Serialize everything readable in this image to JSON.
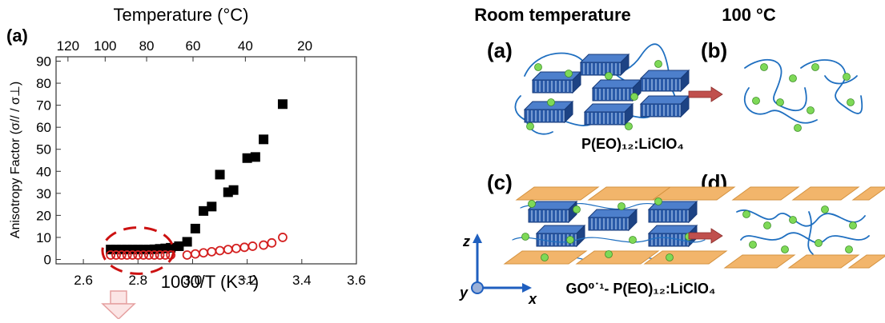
{
  "chart_data": {
    "type": "scatter",
    "panel_label": "(a)",
    "xlabel": "1000/T (K⁻¹)",
    "ylabel": "Anisotropy Factor (σ// / σ⊥)",
    "top_axis_label": "Temperature (°C)",
    "xlim": [
      2.5,
      3.6
    ],
    "ylim": [
      -2,
      92
    ],
    "x_ticks": [
      2.6,
      2.8,
      3.0,
      3.2,
      3.4,
      3.6
    ],
    "y_ticks": [
      0,
      10,
      20,
      30,
      40,
      50,
      60,
      70,
      80,
      90
    ],
    "top_ticks": [
      120,
      100,
      80,
      60,
      40,
      20
    ],
    "series": [
      {
        "marker": "filled-square",
        "color": "#000000",
        "points": [
          [
            2.7,
            4.5
          ],
          [
            2.72,
            4.5
          ],
          [
            2.74,
            4.5
          ],
          [
            2.76,
            4.5
          ],
          [
            2.78,
            4.5
          ],
          [
            2.8,
            4.5
          ],
          [
            2.82,
            4.5
          ],
          [
            2.84,
            4.5
          ],
          [
            2.86,
            4.6
          ],
          [
            2.88,
            4.8
          ],
          [
            2.9,
            5.0
          ],
          [
            2.92,
            5.3
          ],
          [
            2.95,
            6.0
          ],
          [
            2.98,
            8.0
          ],
          [
            3.01,
            14.0
          ],
          [
            3.04,
            22.0
          ],
          [
            3.07,
            24.0
          ],
          [
            3.1,
            38.5
          ],
          [
            3.13,
            30.5
          ],
          [
            3.15,
            31.5
          ],
          [
            3.2,
            46.0
          ],
          [
            3.23,
            46.5
          ],
          [
            3.26,
            54.5
          ],
          [
            3.33,
            70.5
          ]
        ]
      },
      {
        "marker": "open-circle",
        "color": "#d42020",
        "points": [
          [
            2.7,
            2.0
          ],
          [
            2.72,
            2.0
          ],
          [
            2.74,
            2.0
          ],
          [
            2.76,
            2.0
          ],
          [
            2.78,
            2.0
          ],
          [
            2.8,
            2.0
          ],
          [
            2.82,
            2.0
          ],
          [
            2.84,
            2.0
          ],
          [
            2.86,
            2.0
          ],
          [
            2.88,
            2.0
          ],
          [
            2.9,
            2.0
          ],
          [
            2.92,
            2.0
          ],
          [
            2.98,
            2.0
          ],
          [
            3.01,
            2.5
          ],
          [
            3.04,
            3.0
          ],
          [
            3.07,
            3.5
          ],
          [
            3.1,
            4.0
          ],
          [
            3.13,
            4.5
          ],
          [
            3.16,
            5.0
          ],
          [
            3.19,
            5.5
          ],
          [
            3.22,
            6.0
          ],
          [
            3.26,
            6.5
          ],
          [
            3.29,
            7.5
          ],
          [
            3.33,
            10.0
          ]
        ]
      }
    ],
    "highlight_ellipse": {
      "x_center": 2.8,
      "y_center": 4,
      "x_radius": 0.13,
      "y_radius": 10.5,
      "color": "#cc1111"
    }
  },
  "schematic": {
    "header_room": "Room temperature",
    "header_hot": "100 °C",
    "panel_a": "(a)",
    "panel_b": "(b)",
    "panel_c": "(c)",
    "panel_d": "(d)",
    "caption_top": "P(EO)₁₂:LiClO₄",
    "caption_bottom": "GO⁰˙¹- P(EO)₁₂:LiClO₄",
    "axis_z": "z",
    "axis_y": "y",
    "axis_x": "x",
    "colors": {
      "crystal": "#2a5aa8",
      "chain": "#1f6fc0",
      "ion": "#7ed957",
      "sheet": "#f2b56b",
      "arrow": "#c0504d"
    }
  }
}
